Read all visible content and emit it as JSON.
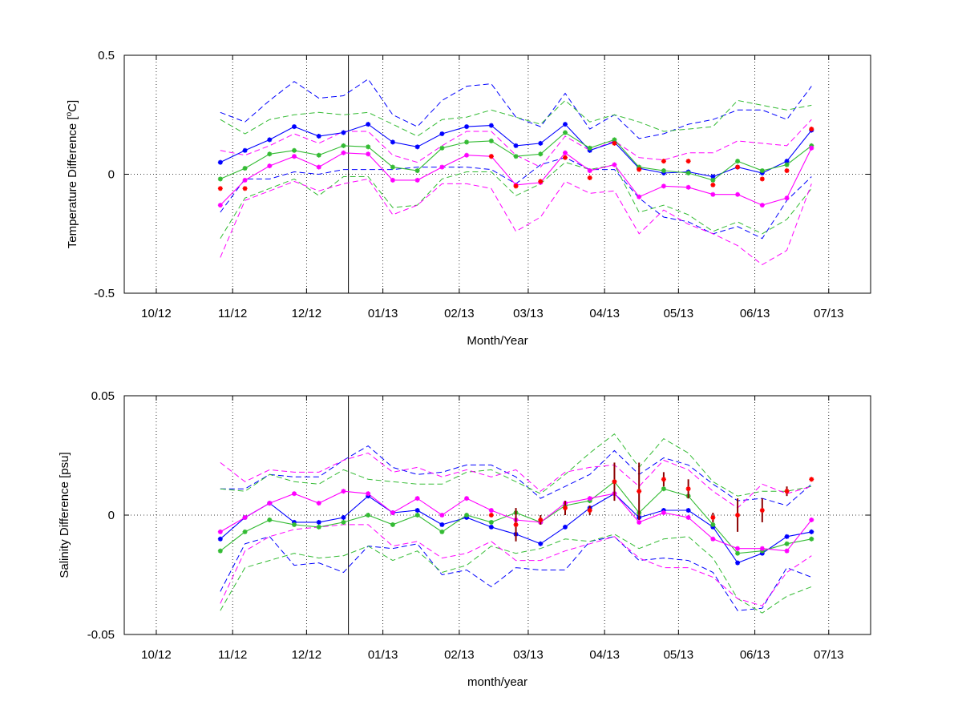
{
  "colors": {
    "blue": "#0000ff",
    "green": "#33bb33",
    "magenta": "#ff00ff",
    "red": "#ff0000",
    "darkred": "#8b0000",
    "axis": "#000000"
  },
  "chart_data": [
    {
      "type": "line",
      "xlabel": "Month/Year",
      "ylabel": "Temperature Difference [",
      "ylabel_sup": "o",
      "ylabel_tail": "C]",
      "ylim": [
        -0.5,
        0.5
      ],
      "yticks": [
        "-0.5",
        "0",
        "0.5"
      ],
      "xlim": [
        "2012-09-18",
        "2013-07-18"
      ],
      "xticks": [
        "10/12",
        "11/12",
        "12/12",
        "01/13",
        "02/13",
        "03/13",
        "04/13",
        "05/13",
        "06/13",
        "07/13"
      ],
      "grid": "dotted",
      "vline": "2012-12-18",
      "x": [
        "2012-10-27",
        "2012-11-06",
        "2012-11-16",
        "2012-11-26",
        "2012-12-06",
        "2012-12-16",
        "2012-12-26",
        "2013-01-05",
        "2013-01-15",
        "2013-01-25",
        "2013-02-04",
        "2013-02-14",
        "2013-02-24",
        "2013-03-06",
        "2013-03-16",
        "2013-03-26",
        "2013-04-05",
        "2013-04-15",
        "2013-04-25",
        "2013-05-05",
        "2013-05-15",
        "2013-05-25",
        "2013-06-04",
        "2013-06-14",
        "2013-06-24"
      ],
      "series": [
        {
          "color": "blue",
          "values": [
            0.05,
            0.1,
            0.145,
            0.2,
            0.16,
            0.175,
            0.21,
            0.135,
            0.115,
            0.17,
            0.2,
            0.205,
            0.12,
            0.13,
            0.21,
            0.1,
            0.135,
            0.025,
            0.005,
            0.01,
            -0.01,
            0.03,
            0.005,
            0.055,
            0.185
          ],
          "upper": [
            0.26,
            0.22,
            0.31,
            0.39,
            0.32,
            0.33,
            0.4,
            0.25,
            0.2,
            0.31,
            0.37,
            0.38,
            0.24,
            0.2,
            0.34,
            0.19,
            0.25,
            0.15,
            0.17,
            0.21,
            0.23,
            0.27,
            0.27,
            0.23,
            0.37
          ],
          "lower": [
            -0.16,
            -0.02,
            -0.02,
            0.01,
            0.0,
            0.02,
            0.02,
            0.02,
            0.03,
            0.03,
            0.03,
            0.02,
            -0.04,
            0.04,
            0.07,
            0.02,
            0.02,
            -0.1,
            -0.18,
            -0.2,
            -0.25,
            -0.22,
            -0.27,
            -0.11,
            -0.01
          ]
        },
        {
          "color": "green",
          "values": [
            -0.02,
            0.025,
            0.085,
            0.1,
            0.08,
            0.12,
            0.115,
            0.03,
            0.015,
            0.11,
            0.135,
            0.14,
            0.075,
            0.085,
            0.175,
            0.11,
            0.145,
            0.03,
            0.015,
            0.005,
            -0.025,
            0.055,
            0.015,
            0.04,
            0.12
          ],
          "upper": [
            0.23,
            0.17,
            0.23,
            0.25,
            0.26,
            0.25,
            0.26,
            0.21,
            0.16,
            0.23,
            0.24,
            0.27,
            0.24,
            0.21,
            0.31,
            0.22,
            0.25,
            0.22,
            0.18,
            0.19,
            0.2,
            0.31,
            0.29,
            0.27,
            0.29
          ],
          "lower": [
            -0.27,
            -0.1,
            -0.06,
            -0.02,
            -0.09,
            -0.01,
            -0.01,
            -0.14,
            -0.13,
            -0.02,
            0.01,
            0.01,
            -0.09,
            -0.04,
            0.05,
            0.02,
            0.04,
            -0.16,
            -0.13,
            -0.17,
            -0.24,
            -0.2,
            -0.25,
            -0.19,
            -0.06
          ]
        },
        {
          "color": "magenta",
          "values": [
            -0.13,
            -0.025,
            0.035,
            0.075,
            0.03,
            0.09,
            0.085,
            -0.025,
            -0.025,
            0.03,
            0.08,
            0.075,
            -0.045,
            -0.035,
            0.09,
            0.015,
            0.04,
            -0.095,
            -0.05,
            -0.055,
            -0.085,
            -0.085,
            -0.13,
            -0.1,
            0.11
          ],
          "upper": [
            0.1,
            0.08,
            0.12,
            0.17,
            0.13,
            0.18,
            0.18,
            0.08,
            0.05,
            0.12,
            0.18,
            0.18,
            0.08,
            0.03,
            0.16,
            0.1,
            0.14,
            0.07,
            0.06,
            0.09,
            0.09,
            0.14,
            0.13,
            0.12,
            0.23
          ],
          "lower": [
            -0.35,
            -0.11,
            -0.07,
            -0.03,
            -0.07,
            -0.04,
            -0.02,
            -0.17,
            -0.13,
            -0.04,
            -0.04,
            -0.06,
            -0.24,
            -0.18,
            -0.03,
            -0.08,
            -0.07,
            -0.25,
            -0.15,
            -0.21,
            -0.25,
            -0.3,
            -0.38,
            -0.32,
            -0.04
          ]
        }
      ],
      "red_points": {
        "x": [
          "2012-10-27",
          "2012-11-06",
          "2013-02-14",
          "2013-02-24",
          "2013-03-06",
          "2013-03-16",
          "2013-03-26",
          "2013-04-05",
          "2013-04-15",
          "2013-04-25",
          "2013-05-05",
          "2013-05-15",
          "2013-05-25",
          "2013-06-04",
          "2013-06-14",
          "2013-06-24"
        ],
        "values": [
          -0.06,
          -0.06,
          0.075,
          -0.05,
          -0.03,
          0.07,
          -0.015,
          0.13,
          0.02,
          0.055,
          0.055,
          -0.045,
          0.03,
          -0.02,
          0.015,
          0.19
        ]
      }
    },
    {
      "type": "line",
      "xlabel": "month/year",
      "ylabel": "Salinity Difference [psu]",
      "ylim": [
        -0.05,
        0.05
      ],
      "yticks": [
        "-0.05",
        "0",
        "0.05"
      ],
      "xlim": [
        "2012-09-18",
        "2013-07-18"
      ],
      "xticks": [
        "10/12",
        "11/12",
        "12/12",
        "01/13",
        "02/13",
        "03/13",
        "04/13",
        "05/13",
        "06/13",
        "07/13"
      ],
      "grid": "dotted",
      "vline": "2012-12-18",
      "x": [
        "2012-10-27",
        "2012-11-06",
        "2012-11-16",
        "2012-11-26",
        "2012-12-06",
        "2012-12-16",
        "2012-12-26",
        "2013-01-05",
        "2013-01-15",
        "2013-01-25",
        "2013-02-04",
        "2013-02-14",
        "2013-02-24",
        "2013-03-06",
        "2013-03-16",
        "2013-03-26",
        "2013-04-05",
        "2013-04-15",
        "2013-04-25",
        "2013-05-05",
        "2013-05-15",
        "2013-05-25",
        "2013-06-04",
        "2013-06-14",
        "2013-06-24"
      ],
      "series": [
        {
          "color": "blue",
          "values": [
            -0.01,
            -0.001,
            0.005,
            -0.003,
            -0.003,
            -0.001,
            0.008,
            0.001,
            0.002,
            -0.004,
            -0.001,
            -0.005,
            -0.008,
            -0.012,
            -0.005,
            0.003,
            0.009,
            -0.001,
            0.002,
            0.002,
            -0.005,
            -0.02,
            -0.016,
            -0.009,
            -0.007
          ],
          "upper": [
            0.011,
            0.011,
            0.017,
            0.016,
            0.016,
            0.023,
            0.029,
            0.02,
            0.017,
            0.018,
            0.021,
            0.021,
            0.016,
            0.007,
            0.012,
            0.017,
            0.027,
            0.017,
            0.024,
            0.021,
            0.013,
            0.006,
            0.007,
            0.004,
            0.013
          ],
          "lower": [
            -0.032,
            -0.012,
            -0.009,
            -0.021,
            -0.02,
            -0.024,
            -0.013,
            -0.014,
            -0.012,
            -0.025,
            -0.023,
            -0.03,
            -0.022,
            -0.023,
            -0.023,
            -0.011,
            -0.009,
            -0.019,
            -0.018,
            -0.019,
            -0.024,
            -0.04,
            -0.039,
            -0.022,
            -0.026
          ]
        },
        {
          "color": "green",
          "values": [
            -0.015,
            -0.007,
            -0.002,
            -0.004,
            -0.005,
            -0.003,
            0.0,
            -0.004,
            0.0,
            -0.007,
            0.0,
            -0.003,
            0.001,
            -0.003,
            0.004,
            0.006,
            0.014,
            0.001,
            0.011,
            0.008,
            -0.004,
            -0.016,
            -0.015,
            -0.012,
            -0.01
          ],
          "upper": [
            0.011,
            0.01,
            0.017,
            0.014,
            0.013,
            0.019,
            0.015,
            0.014,
            0.013,
            0.013,
            0.018,
            0.019,
            0.014,
            0.009,
            0.017,
            0.026,
            0.034,
            0.02,
            0.032,
            0.026,
            0.014,
            0.008,
            0.01,
            0.01,
            0.012
          ],
          "lower": [
            -0.04,
            -0.022,
            -0.019,
            -0.016,
            -0.018,
            -0.017,
            -0.013,
            -0.019,
            -0.015,
            -0.024,
            -0.021,
            -0.013,
            -0.016,
            -0.014,
            -0.01,
            -0.011,
            -0.008,
            -0.014,
            -0.01,
            -0.009,
            -0.018,
            -0.035,
            -0.041,
            -0.034,
            -0.03
          ]
        },
        {
          "color": "magenta",
          "values": [
            -0.007,
            -0.001,
            0.005,
            0.009,
            0.005,
            0.01,
            0.009,
            0.001,
            0.007,
            0.0,
            0.007,
            0.002,
            -0.002,
            -0.003,
            0.005,
            0.007,
            0.009,
            -0.003,
            0.001,
            -0.001,
            -0.01,
            -0.014,
            -0.014,
            -0.015,
            -0.002
          ],
          "upper": [
            0.022,
            0.014,
            0.019,
            0.018,
            0.018,
            0.023,
            0.026,
            0.018,
            0.02,
            0.016,
            0.019,
            0.016,
            0.019,
            0.01,
            0.018,
            0.02,
            0.021,
            0.012,
            0.023,
            0.019,
            0.01,
            0.003,
            0.013,
            0.009,
            0.012
          ],
          "lower": [
            -0.037,
            -0.015,
            -0.009,
            -0.006,
            -0.005,
            -0.004,
            -0.004,
            -0.013,
            -0.011,
            -0.018,
            -0.016,
            -0.011,
            -0.019,
            -0.019,
            -0.015,
            -0.012,
            -0.009,
            -0.018,
            -0.022,
            -0.022,
            -0.026,
            -0.035,
            -0.038,
            -0.024,
            -0.017
          ]
        }
      ],
      "red_points": {
        "x": [
          "2013-02-14",
          "2013-02-24",
          "2013-03-06",
          "2013-03-16",
          "2013-03-26",
          "2013-04-05",
          "2013-04-15",
          "2013-04-25",
          "2013-05-05",
          "2013-05-15",
          "2013-05-25",
          "2013-06-04",
          "2013-06-14",
          "2013-06-24"
        ],
        "values": [
          0.0,
          -0.004,
          -0.002,
          0.003,
          0.002,
          0.014,
          0.01,
          0.015,
          0.011,
          -0.001,
          0.0,
          0.002,
          0.01,
          0.015
        ],
        "err": [
          0,
          0.007,
          0.002,
          0.003,
          0.002,
          0.008,
          0.012,
          0.003,
          0.004,
          0.002,
          0.007,
          0.005,
          0.002,
          0
        ]
      }
    }
  ]
}
